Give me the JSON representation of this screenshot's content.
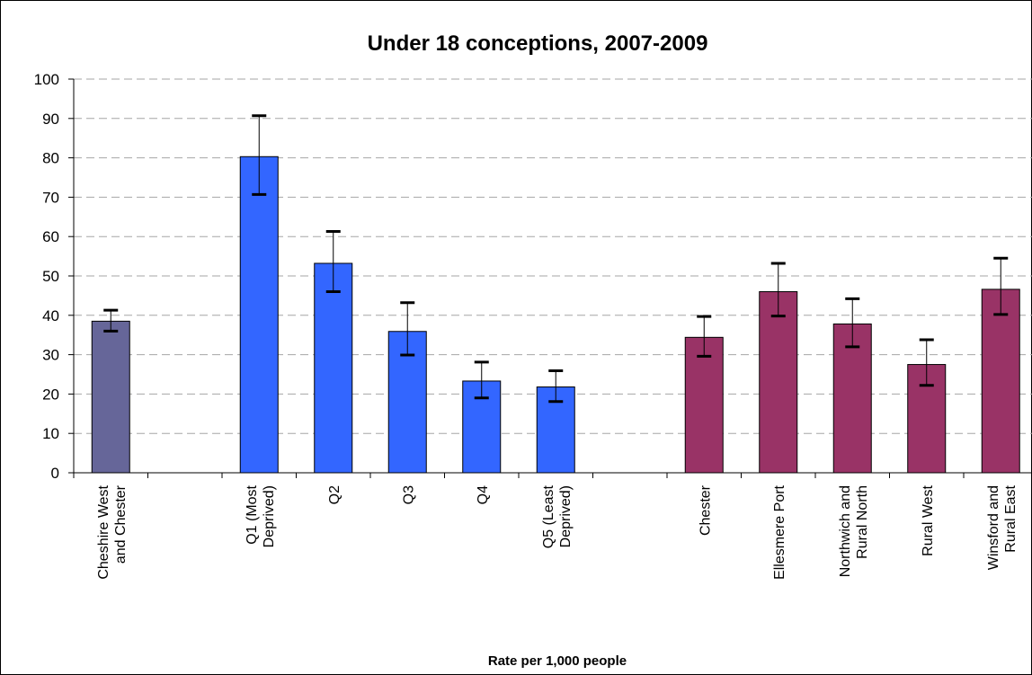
{
  "chart_data": {
    "type": "bar",
    "title": "Under 18 conceptions, 2007-2009",
    "xlabel": "Rate per 1,000 people",
    "ylabel": "",
    "ylim": [
      0,
      100
    ],
    "yticks": [
      0,
      10,
      20,
      30,
      40,
      50,
      60,
      70,
      80,
      90,
      100
    ],
    "grid": "horizontal dashed",
    "legend": "none",
    "colors": {
      "district": "#666699",
      "quintile": "#3366FF",
      "locality": "#993366",
      "grid": "#a6a6a6",
      "axis": "#000000"
    },
    "categories": [
      [
        "Cheshire West",
        "and Chester"
      ],
      [],
      [
        "Q1 (Most",
        "Deprived)"
      ],
      [
        "Q2"
      ],
      [
        "Q3"
      ],
      [
        "Q4"
      ],
      [
        "Q5 (Least",
        "Deprived)"
      ],
      [],
      [
        "Chester"
      ],
      [
        "Ellesmere Port"
      ],
      [
        "Northwich and",
        "Rural North"
      ],
      [
        "Rural West"
      ],
      [
        "Winsford and",
        "Rural East"
      ]
    ],
    "values": [
      38.5,
      null,
      80.3,
      53.2,
      35.9,
      23.3,
      21.8,
      null,
      34.4,
      46.0,
      37.8,
      27.5,
      46.6
    ],
    "error_low": [
      36.0,
      null,
      70.7,
      46.0,
      29.9,
      19.0,
      18.1,
      null,
      29.6,
      39.8,
      32.0,
      22.2,
      40.2
    ],
    "error_high": [
      41.3,
      null,
      90.7,
      61.3,
      43.2,
      28.1,
      25.9,
      null,
      39.7,
      53.2,
      44.2,
      33.8,
      54.5
    ],
    "groups": [
      "district",
      null,
      "quintile",
      "quintile",
      "quintile",
      "quintile",
      "quintile",
      null,
      "locality",
      "locality",
      "locality",
      "locality",
      "locality"
    ]
  }
}
